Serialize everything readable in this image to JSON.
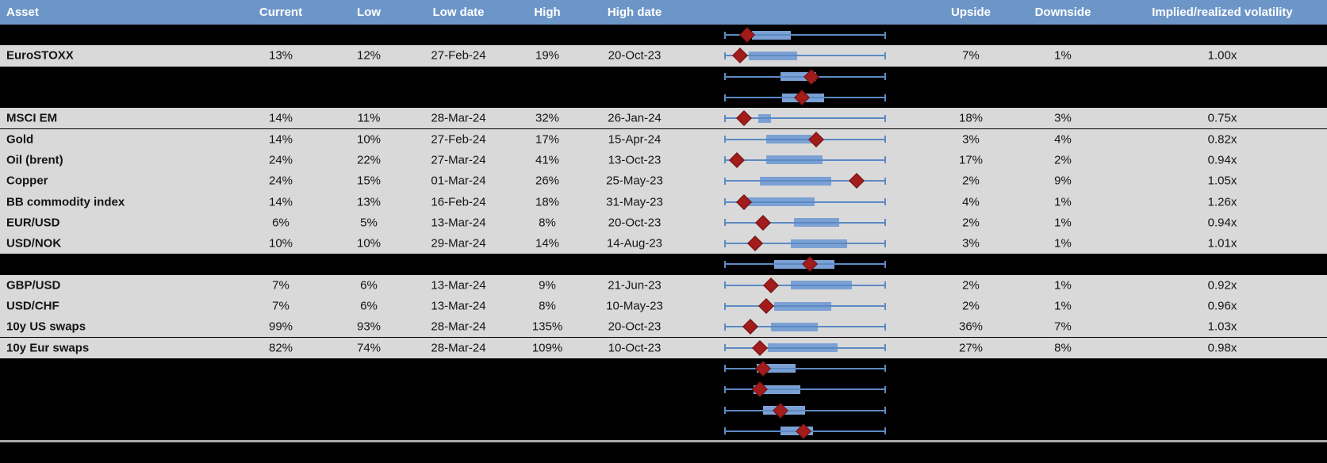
{
  "header": {
    "asset": "Asset",
    "current": "Current",
    "low": "Low",
    "low_date": "Low date",
    "high": "High",
    "high_date": "High date",
    "upside": "Upside",
    "downside": "Downside",
    "implied_realized": "Implied/realized volatility"
  },
  "colors": {
    "header_bg": "#6d96c8",
    "row_bg": "#d9d9d9",
    "spacer_bg": "#000000",
    "box_fill": "#7ba1d4",
    "whisker": "#5b8ac4",
    "marker": "#a21c1c",
    "divider": "#a8a8a8"
  },
  "chart_data": {
    "type": "table",
    "columns": [
      "Asset",
      "Current",
      "Low",
      "Low date",
      "High",
      "High date",
      "1y range box plot",
      "Upside",
      "Downside",
      "Implied/realized volatility"
    ],
    "boxplot_scale": "box_low/box_high/marker are fractions of each row's whisker span (0 = left whisker/min, 1 = right whisker/max); marker is the red diamond (current level)",
    "rows": [
      {
        "kind": "hidden",
        "boxplot": {
          "box_low": 0.17,
          "box_high": 0.41,
          "marker": 0.14
        }
      },
      {
        "kind": "data",
        "asset": "EuroSTOXX",
        "current": "13%",
        "low": "12%",
        "low_date": "27-Feb-24",
        "high": "19%",
        "high_date": "20-Oct-23",
        "upside": "7%",
        "downside": "1%",
        "implied_realized": "1.00x",
        "boxplot": {
          "box_low": 0.15,
          "box_high": 0.45,
          "marker": 0.1
        }
      },
      {
        "kind": "hidden",
        "boxplot": {
          "box_low": 0.35,
          "box_high": 0.57,
          "marker": 0.54
        }
      },
      {
        "kind": "hidden",
        "boxplot": {
          "box_low": 0.36,
          "box_high": 0.62,
          "marker": 0.48
        }
      },
      {
        "kind": "data",
        "asset": "MSCI EM",
        "current": "14%",
        "low": "11%",
        "low_date": "28-Mar-24",
        "high": "32%",
        "high_date": "26-Jan-24",
        "upside": "18%",
        "downside": "3%",
        "implied_realized": "0.75x",
        "boxplot": {
          "box_low": 0.21,
          "box_high": 0.29,
          "marker": 0.12
        }
      },
      {
        "kind": "data",
        "asset": "Gold",
        "current": "14%",
        "low": "10%",
        "low_date": "27-Feb-24",
        "high": "17%",
        "high_date": "15-Apr-24",
        "upside": "3%",
        "downside": "4%",
        "implied_realized": "0.82x",
        "boxplot": {
          "box_low": 0.26,
          "box_high": 0.54,
          "marker": 0.57
        }
      },
      {
        "kind": "data",
        "asset": "Oil (brent)",
        "current": "24%",
        "low": "22%",
        "low_date": "27-Mar-24",
        "high": "41%",
        "high_date": "13-Oct-23",
        "upside": "17%",
        "downside": "2%",
        "implied_realized": "0.94x",
        "boxplot": {
          "box_low": 0.26,
          "box_high": 0.61,
          "marker": 0.08
        }
      },
      {
        "kind": "data",
        "asset": "Copper",
        "current": "24%",
        "low": "15%",
        "low_date": "01-Mar-24",
        "high": "26%",
        "high_date": "25-May-23",
        "upside": "2%",
        "downside": "9%",
        "implied_realized": "1.05x",
        "boxplot": {
          "box_low": 0.22,
          "box_high": 0.66,
          "marker": 0.82
        }
      },
      {
        "kind": "data",
        "asset": "BB commodity index",
        "current": "14%",
        "low": "13%",
        "low_date": "16-Feb-24",
        "high": "18%",
        "high_date": "31-May-23",
        "upside": "4%",
        "downside": "1%",
        "implied_realized": "1.26x",
        "boxplot": {
          "box_low": 0.1,
          "box_high": 0.56,
          "marker": 0.12
        }
      },
      {
        "kind": "data",
        "asset": "EUR/USD",
        "current": "6%",
        "low": "5%",
        "low_date": "13-Mar-24",
        "high": "8%",
        "high_date": "20-Oct-23",
        "upside": "2%",
        "downside": "1%",
        "implied_realized": "0.94x",
        "boxplot": {
          "box_low": 0.43,
          "box_high": 0.71,
          "marker": 0.24
        }
      },
      {
        "kind": "data",
        "asset": "USD/NOK",
        "current": "10%",
        "low": "10%",
        "low_date": "29-Mar-24",
        "high": "14%",
        "high_date": "14-Aug-23",
        "upside": "3%",
        "downside": "1%",
        "implied_realized": "1.01x",
        "boxplot": {
          "box_low": 0.41,
          "box_high": 0.76,
          "marker": 0.19
        }
      },
      {
        "kind": "hidden",
        "boxplot": {
          "box_low": 0.31,
          "box_high": 0.68,
          "marker": 0.53
        }
      },
      {
        "kind": "data",
        "asset": "GBP/USD",
        "current": "7%",
        "low": "6%",
        "low_date": "13-Mar-24",
        "high": "9%",
        "high_date": "21-Jun-23",
        "upside": "2%",
        "downside": "1%",
        "implied_realized": "0.92x",
        "boxplot": {
          "box_low": 0.41,
          "box_high": 0.79,
          "marker": 0.29
        }
      },
      {
        "kind": "data",
        "asset": "USD/CHF",
        "current": "7%",
        "low": "6%",
        "low_date": "13-Mar-24",
        "high": "8%",
        "high_date": "10-May-23",
        "upside": "2%",
        "downside": "1%",
        "implied_realized": "0.96x",
        "boxplot": {
          "box_low": 0.31,
          "box_high": 0.66,
          "marker": 0.26
        }
      },
      {
        "kind": "data",
        "asset": "10y US swaps",
        "current": "99%",
        "low": "93%",
        "low_date": "28-Mar-24",
        "high": "135%",
        "high_date": "20-Oct-23",
        "upside": "36%",
        "downside": "7%",
        "implied_realized": "1.03x",
        "boxplot": {
          "box_low": 0.29,
          "box_high": 0.58,
          "marker": 0.16
        }
      },
      {
        "kind": "data",
        "asset": "10y Eur swaps",
        "current": "82%",
        "low": "74%",
        "low_date": "28-Mar-24",
        "high": "109%",
        "high_date": "10-Oct-23",
        "upside": "27%",
        "downside": "8%",
        "implied_realized": "0.98x",
        "boxplot": {
          "box_low": 0.27,
          "box_high": 0.7,
          "marker": 0.22
        }
      },
      {
        "kind": "hidden",
        "boxplot": {
          "box_low": 0.2,
          "box_high": 0.44,
          "marker": 0.24
        }
      },
      {
        "kind": "hidden",
        "boxplot": {
          "box_low": 0.18,
          "box_high": 0.47,
          "marker": 0.22
        }
      },
      {
        "kind": "hidden",
        "boxplot": {
          "box_low": 0.24,
          "box_high": 0.5,
          "marker": 0.35
        }
      },
      {
        "kind": "hidden",
        "boxplot": {
          "box_low": 0.35,
          "box_high": 0.55,
          "marker": 0.49
        }
      }
    ]
  }
}
